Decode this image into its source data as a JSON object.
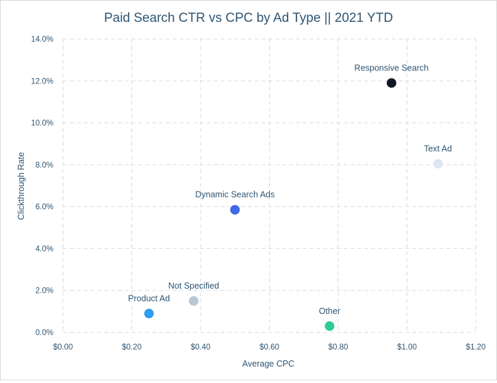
{
  "chart_data": {
    "type": "scatter",
    "title": "Paid Search CTR vs CPC by Ad Type || 2021 YTD",
    "xlabel": "Average CPC",
    "ylabel": "Clickthrough Rate",
    "xlim": [
      0,
      1.2
    ],
    "ylim": [
      0,
      0.14
    ],
    "x_ticks": [
      0,
      0.2,
      0.4,
      0.6,
      0.8,
      1.0,
      1.2
    ],
    "x_tick_labels": [
      "$0.00",
      "$0.20",
      "$0.40",
      "$0.60",
      "$0.80",
      "$1.00",
      "$1.20"
    ],
    "y_ticks": [
      0,
      0.02,
      0.04,
      0.06,
      0.08,
      0.1,
      0.12,
      0.14
    ],
    "y_tick_labels": [
      "0.0%",
      "2.0%",
      "4.0%",
      "6.0%",
      "8.0%",
      "10.0%",
      "12.0%",
      "14.0%"
    ],
    "grid": true,
    "points": [
      {
        "label": "Responsive Search",
        "x": 0.955,
        "y": 0.119,
        "color": "#111827"
      },
      {
        "label": "Text Ad",
        "x": 1.09,
        "y": 0.0805,
        "color": "#dde6ee"
      },
      {
        "label": "Dynamic Search Ads",
        "x": 0.5,
        "y": 0.0585,
        "color": "#4169e1"
      },
      {
        "label": "Not Specified",
        "x": 0.38,
        "y": 0.015,
        "color": "#b8c7d3"
      },
      {
        "label": "Product Ad",
        "x": 0.25,
        "y": 0.009,
        "color": "#2f9ef0"
      },
      {
        "label": "Other",
        "x": 0.775,
        "y": 0.003,
        "color": "#2ecc94"
      }
    ]
  }
}
